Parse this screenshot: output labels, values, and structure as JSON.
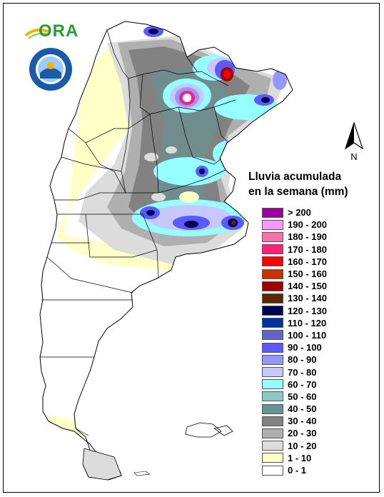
{
  "logo": {
    "name": "ORA",
    "text": "ORA"
  },
  "seal": {
    "name": "Servicio Meteorológico Nacional seal"
  },
  "north_arrow": {
    "label": "N"
  },
  "legend": {
    "title_line1": "Lluvia acumulada",
    "title_line2": "en la semana (mm)",
    "classes": [
      {
        "label": "> 200",
        "color": "#9b009b"
      },
      {
        "label": "190 - 200",
        "color": "#ff96ff"
      },
      {
        "label": "180 - 190",
        "color": "#ff6fa8"
      },
      {
        "label": "170 - 180",
        "color": "#ff1f7a"
      },
      {
        "label": "160 - 170",
        "color": "#ff0000"
      },
      {
        "label": "150 - 160",
        "color": "#c83200"
      },
      {
        "label": "140 - 150",
        "color": "#a00000"
      },
      {
        "label": "130 - 140",
        "color": "#5a2800"
      },
      {
        "label": "120 - 130",
        "color": "#000050"
      },
      {
        "label": "110 - 120",
        "color": "#0032a0"
      },
      {
        "label": "100 - 110",
        "color": "#6464c8"
      },
      {
        "label": "90 - 100",
        "color": "#5a5aff"
      },
      {
        "label": "80 - 90",
        "color": "#9696ff"
      },
      {
        "label": "70 - 80",
        "color": "#c8c8ff"
      },
      {
        "label": "60 - 70",
        "color": "#96ffff"
      },
      {
        "label": "50 - 60",
        "color": "#8cc8c8"
      },
      {
        "label": "40 - 50",
        "color": "#649696"
      },
      {
        "label": "30 - 40",
        "color": "#828282"
      },
      {
        "label": "20 - 30",
        "color": "#afafaf"
      },
      {
        "label": "10 - 20",
        "color": "#dcdcdc"
      },
      {
        "label": "1 - 10",
        "color": "#ffffc8"
      },
      {
        "label": "0 - 1",
        "color": "#ffffff"
      }
    ]
  }
}
